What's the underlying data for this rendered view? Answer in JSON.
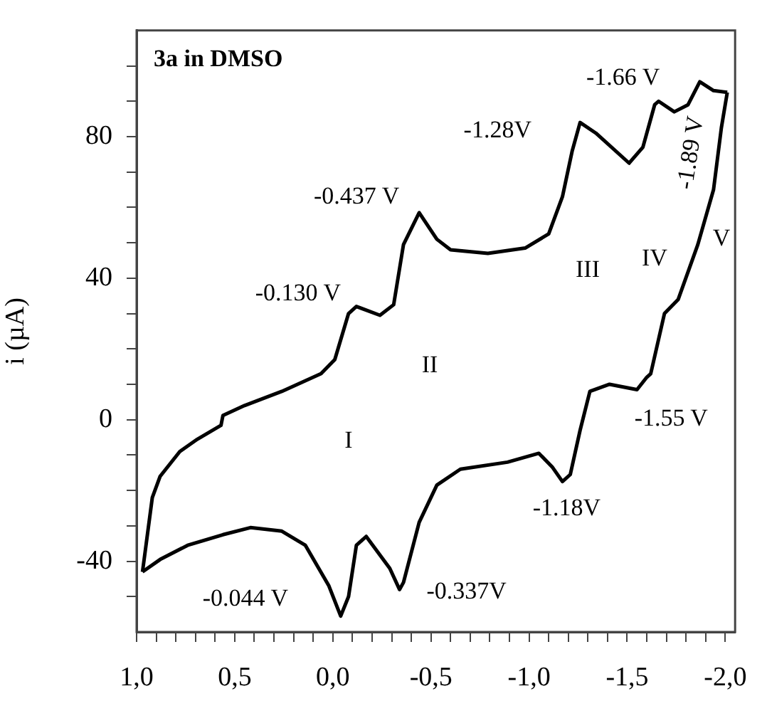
{
  "chart_data": {
    "type": "line",
    "title": "3a in DMSO",
    "ylabel": "i (µA)",
    "xlim": [
      1.0,
      -2.05
    ],
    "ylim": [
      -60,
      110
    ],
    "xticks": [
      {
        "value": 1.0,
        "label": "1,0"
      },
      {
        "value": 0.9,
        "label": null
      },
      {
        "value": 0.8,
        "label": null
      },
      {
        "value": 0.7,
        "label": null
      },
      {
        "value": 0.6,
        "label": null
      },
      {
        "value": 0.5,
        "label": "0,5"
      },
      {
        "value": 0.4,
        "label": null
      },
      {
        "value": 0.3,
        "label": null
      },
      {
        "value": 0.2,
        "label": null
      },
      {
        "value": 0.1,
        "label": null
      },
      {
        "value": 0.0,
        "label": "0,0"
      },
      {
        "value": -0.1,
        "label": null
      },
      {
        "value": -0.2,
        "label": null
      },
      {
        "value": -0.3,
        "label": null
      },
      {
        "value": -0.4,
        "label": null
      },
      {
        "value": -0.5,
        "label": "-0,5"
      },
      {
        "value": -0.6,
        "label": null
      },
      {
        "value": -0.7,
        "label": null
      },
      {
        "value": -0.8,
        "label": null
      },
      {
        "value": -0.9,
        "label": null
      },
      {
        "value": -1.0,
        "label": "-1,0"
      },
      {
        "value": -1.1,
        "label": null
      },
      {
        "value": -1.2,
        "label": null
      },
      {
        "value": -1.3,
        "label": null
      },
      {
        "value": -1.4,
        "label": null
      },
      {
        "value": -1.5,
        "label": "-1,5"
      },
      {
        "value": -1.6,
        "label": null
      },
      {
        "value": -1.7,
        "label": null
      },
      {
        "value": -1.8,
        "label": null
      },
      {
        "value": -1.9,
        "label": null
      },
      {
        "value": -2.0,
        "label": "-2,0"
      }
    ],
    "yticks": [
      {
        "value": -50,
        "label": null
      },
      -40,
      {
        "value": -30,
        "label": null
      },
      {
        "value": -20,
        "label": null
      },
      {
        "value": -10,
        "label": null
      },
      0,
      {
        "value": 10,
        "label": null
      },
      {
        "value": 20,
        "label": null
      },
      {
        "value": 30,
        "label": null
      },
      40,
      {
        "value": 50,
        "label": null
      },
      {
        "value": 60,
        "label": null
      },
      {
        "value": 70,
        "label": null
      },
      80,
      {
        "value": 90,
        "label": null
      },
      {
        "value": 100,
        "label": null
      }
    ],
    "marker": "none",
    "line_style": "solid",
    "series": [
      {
        "color": "#000000",
        "x": [
          0.97,
          0.92,
          0.88,
          0.78,
          0.69,
          0.57,
          0.56,
          0.45,
          0.26,
          0.06,
          -0.01,
          -0.08,
          -0.12,
          -0.24,
          -0.31,
          -0.36,
          -0.44,
          -0.53,
          -0.6,
          -0.79,
          -0.98,
          -1.1,
          -1.17,
          -1.22,
          -1.26,
          -1.34,
          -1.51,
          -1.58,
          -1.64,
          -1.66,
          -1.74,
          -1.81,
          -1.87,
          -1.94,
          -2.01
        ],
        "values": [
          -43,
          -22,
          -16,
          -9,
          -5.5,
          -1.6,
          1.2,
          4,
          8,
          13,
          17,
          30,
          32,
          29.5,
          32.5,
          49.5,
          58.5,
          51,
          48,
          47,
          48.5,
          52.5,
          63,
          76,
          84,
          81,
          72.5,
          77,
          89,
          90,
          87,
          89,
          95.5,
          93,
          92.5
        ]
      },
      {
        "color": "#000000",
        "x": [
          -2.01,
          -1.98,
          -1.94,
          -1.86,
          -1.76,
          -1.69,
          -1.62,
          -1.6,
          -1.55,
          -1.41,
          -1.31,
          -1.26,
          -1.21,
          -1.17,
          -1.12,
          -1.05,
          -0.89,
          -0.65,
          -0.53,
          -0.44,
          -0.36,
          -0.34,
          -0.29,
          -0.17,
          -0.12,
          -0.08,
          -0.04,
          0.02,
          0.14,
          0.26,
          0.42,
          0.56,
          0.74,
          0.88,
          0.97
        ],
        "values": [
          92.5,
          82.5,
          65,
          49.5,
          34,
          30,
          13,
          12,
          8.5,
          10,
          8,
          -3,
          -15.5,
          -17.5,
          -13.5,
          -9.5,
          -12,
          -14,
          -18.5,
          -29,
          -46,
          -48,
          -42,
          -33,
          -35.5,
          -50,
          -55.5,
          -47,
          -35.5,
          -31.5,
          -30.5,
          -32.5,
          -35.5,
          -39.5,
          -43
        ]
      }
    ],
    "annotations": [
      {
        "text": "-0.130 V",
        "x": -0.12,
        "y": 32
      },
      {
        "text": "-0.437 V",
        "x": -0.44,
        "y": 58.5
      },
      {
        "text": "-1.28V",
        "x": -1.26,
        "y": 84
      },
      {
        "text": "-1.66 V",
        "x": -1.66,
        "y": 90
      },
      {
        "text": "-1.89 V",
        "x": -1.87,
        "y": 95.5
      },
      {
        "text": "-1.55 V",
        "x": -1.55,
        "y": 8.5
      },
      {
        "text": "-1.18V",
        "x": -1.17,
        "y": -17.5
      },
      {
        "text": "-0.337V",
        "x": -0.34,
        "y": -48
      },
      {
        "text": "-0.044 V",
        "x": -0.04,
        "y": -55.5
      },
      "I",
      "II",
      "III",
      "IV",
      "V"
    ]
  }
}
